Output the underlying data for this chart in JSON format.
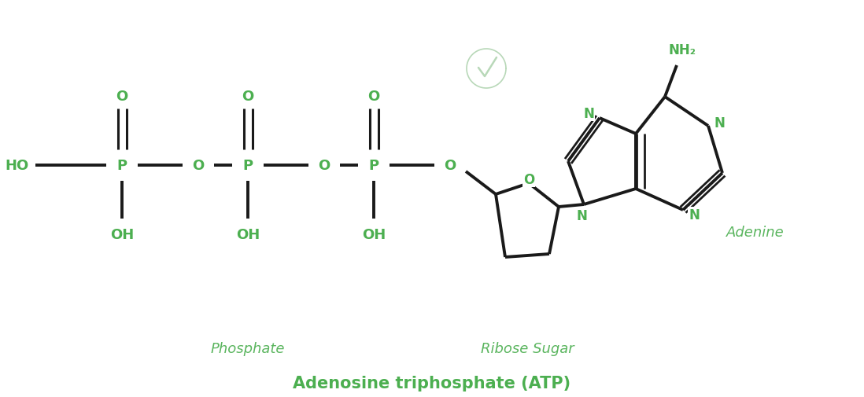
{
  "title": "Adenosine triphosphate (ATP)",
  "green_color": "#4CAF50",
  "black_color": "#1a1a1a",
  "label_green": "#5ab55e",
  "background": "#ffffff",
  "phosphate_label": "Phosphate",
  "ribose_label": "Ribose Sugar",
  "adenine_label": "Adenine"
}
